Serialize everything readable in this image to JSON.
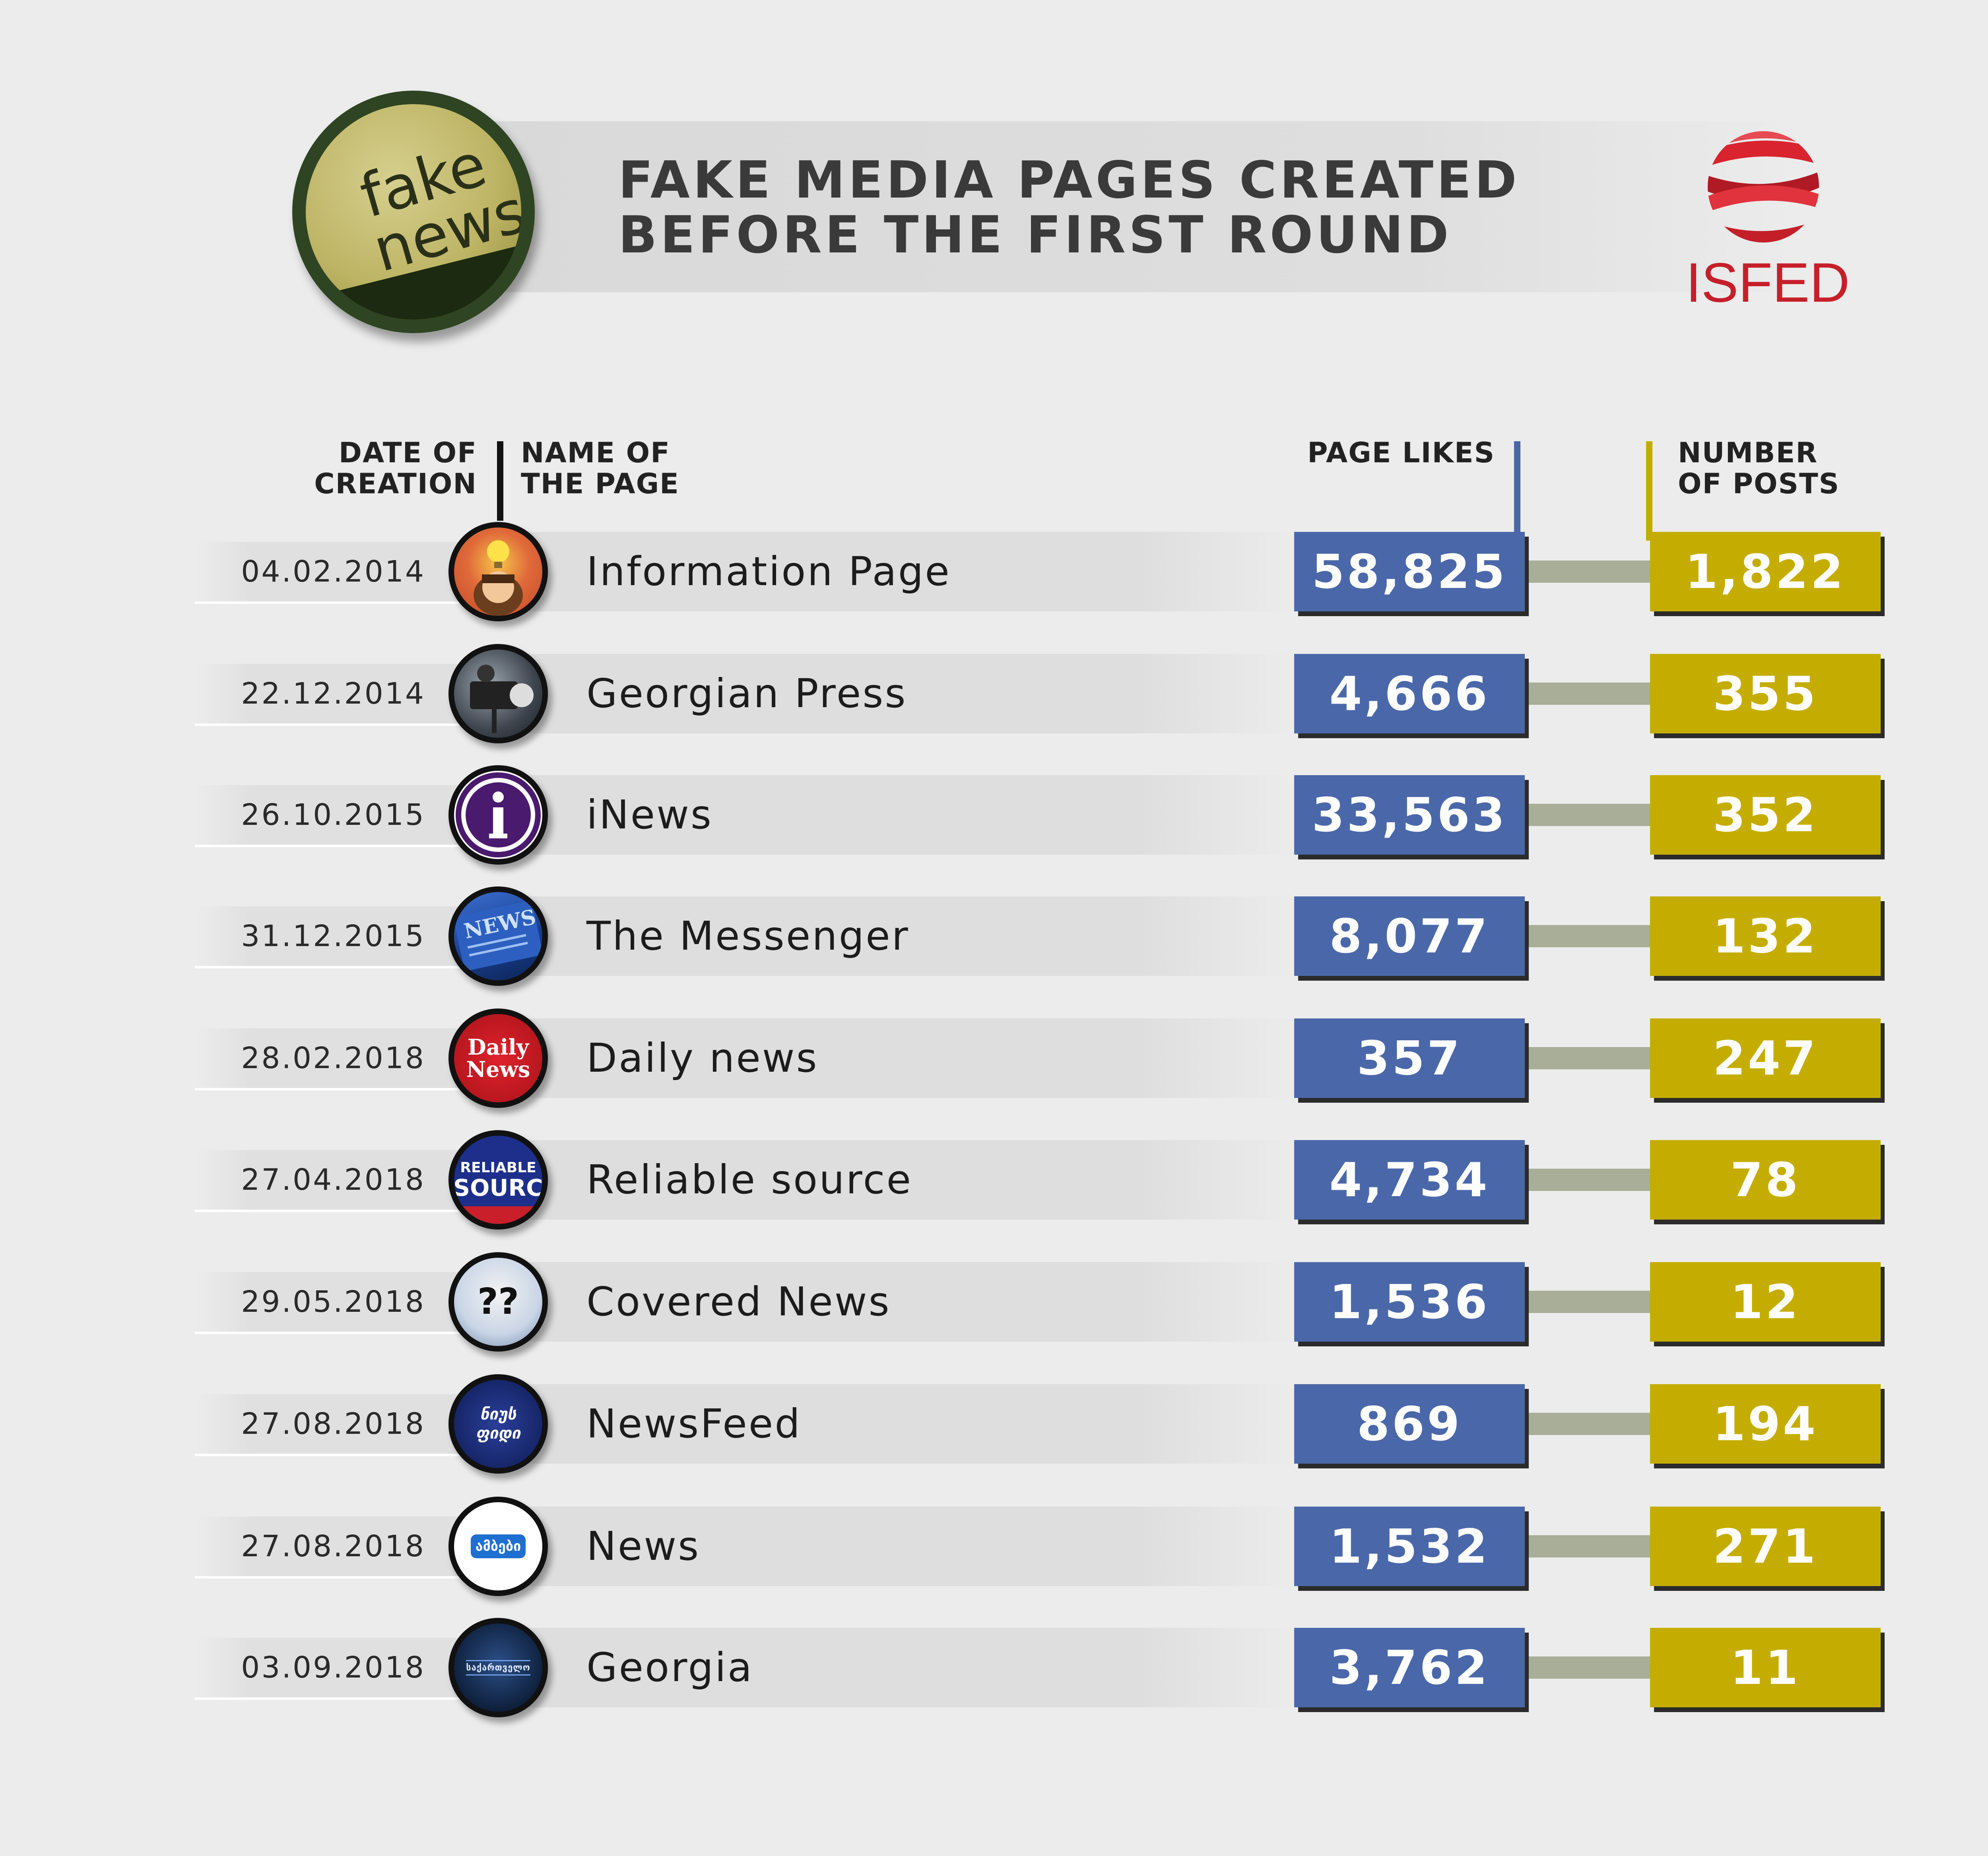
{
  "title": {
    "line1": "FAKE MEDIA PAGES CREATED",
    "line2": "BEFORE THE FIRST ROUND"
  },
  "badge": {
    "line1": "fake",
    "line2": "news"
  },
  "org": {
    "name": "ISFED",
    "color": "#c61f2a"
  },
  "columns": {
    "date": {
      "line1": "DATE OF",
      "line2": "CREATION"
    },
    "name": {
      "line1": "NAME OF",
      "line2": "THE PAGE"
    },
    "likes": {
      "line1": "PAGE LIKES"
    },
    "posts": {
      "line1": "NUMBER",
      "line2": "OF POSTS"
    }
  },
  "colors": {
    "likes": "#4a68a9",
    "posts": "#c5ad00"
  },
  "rows": [
    {
      "date": "04.02.2014",
      "name": "Information Page",
      "likes": "58,825",
      "posts": "1,822",
      "icon": "lightbulb-person-icon"
    },
    {
      "date": "22.12.2014",
      "name": "Georgian Press",
      "likes": "4,666",
      "posts": "355",
      "icon": "video-camera-icon"
    },
    {
      "date": "26.10.2015",
      "name": "iNews",
      "likes": "33,563",
      "posts": "352",
      "icon": "info-icon"
    },
    {
      "date": "31.12.2015",
      "name": "The Messenger",
      "likes": "8,077",
      "posts": "132",
      "icon": "newspaper-icon"
    },
    {
      "date": "28.02.2018",
      "name": "Daily news",
      "likes": "357",
      "posts": "247",
      "icon": "daily-news-logo-icon",
      "icon_text": [
        "Daily",
        "News"
      ]
    },
    {
      "date": "27.04.2018",
      "name": "Reliable source",
      "likes": "4,734",
      "posts": "78",
      "icon": "reliable-source-logo-icon",
      "icon_text": [
        "RELIABLE",
        "SOURC"
      ]
    },
    {
      "date": "29.05.2018",
      "name": "Covered News",
      "likes": "1,536",
      "posts": "12",
      "icon": "question-marks-icon",
      "icon_text": [
        "?",
        "?"
      ]
    },
    {
      "date": "27.08.2018",
      "name": "NewsFeed",
      "likes": "869",
      "posts": "194",
      "icon": "newsfeed-logo-icon",
      "icon_text": [
        "ნიუს",
        "ფიდი"
      ]
    },
    {
      "date": "27.08.2018",
      "name": "News",
      "likes": "1,532",
      "posts": "271",
      "icon": "speech-bubble-icon",
      "icon_text": [
        "ამბები"
      ]
    },
    {
      "date": "03.09.2018",
      "name": "Georgia",
      "likes": "3,762",
      "posts": "11",
      "icon": "georgia-logo-icon",
      "icon_text": [
        "საქართველო"
      ]
    }
  ]
}
